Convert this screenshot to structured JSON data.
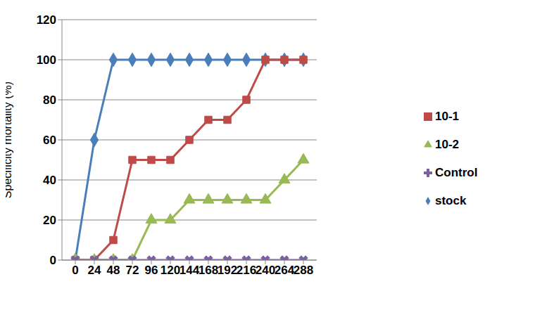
{
  "chart_data": {
    "type": "line",
    "categories": [
      "0",
      "24",
      "48",
      "72",
      "96",
      "120",
      "144",
      "168",
      "192",
      "216",
      "240",
      "264",
      "288"
    ],
    "y_label": "Specificity mortality (%)",
    "ylim": [
      0,
      120
    ],
    "yticks": [
      0,
      20,
      40,
      60,
      80,
      100,
      120
    ],
    "grid": true,
    "legend": "right",
    "series": [
      {
        "name": "stock",
        "color": "#4A7EBB",
        "marker": "diamond",
        "values": [
          0,
          60,
          100,
          100,
          100,
          100,
          100,
          100,
          100,
          100,
          100,
          100,
          100
        ]
      },
      {
        "name": "10-1",
        "color": "#BE4B48",
        "marker": "square",
        "values": [
          0,
          0,
          10,
          50,
          50,
          50,
          60,
          70,
          70,
          80,
          100,
          100,
          100
        ]
      },
      {
        "name": "10-2",
        "color": "#98B954",
        "marker": "triangle",
        "values": [
          0,
          0,
          0,
          0,
          20,
          20,
          30,
          30,
          30,
          30,
          30,
          40,
          50
        ]
      },
      {
        "name": "Control",
        "color": "#7D60A0",
        "marker": "x",
        "values": [
          0,
          0,
          0,
          0,
          0,
          0,
          0,
          0,
          0,
          0,
          0,
          0,
          0
        ]
      }
    ]
  }
}
